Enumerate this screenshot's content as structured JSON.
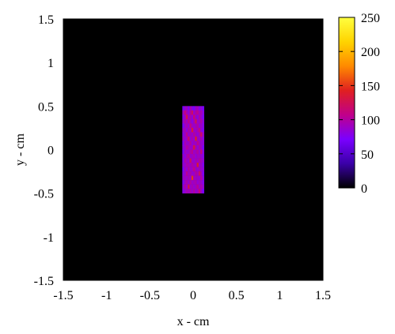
{
  "chart_data": {
    "type": "heatmap",
    "title": "",
    "xlabel": "x - cm",
    "ylabel": "y - cm",
    "xlim": [
      -1.5,
      1.5
    ],
    "ylim": [
      -1.5,
      1.5
    ],
    "x_ticks": [
      "-1.5",
      "-1",
      "-0.5",
      "0",
      "0.5",
      "1",
      "1.5"
    ],
    "y_ticks": [
      "-1.5",
      "-1",
      "-0.5",
      "0",
      "0.5",
      "1",
      "1.5"
    ],
    "x_tick_values": [
      -1.5,
      -1,
      -0.5,
      0,
      0.5,
      1,
      1.5
    ],
    "y_tick_values": [
      -1.5,
      -1,
      -0.5,
      0,
      0.5,
      1,
      1.5
    ],
    "background_value": 0,
    "colorbar": {
      "min": 0,
      "max": 250,
      "ticks": [
        "0",
        "50",
        "100",
        "150",
        "200",
        "250"
      ],
      "tick_values": [
        0,
        50,
        100,
        150,
        200,
        250
      ],
      "palette_stops": [
        "#000000",
        "#3b00a8",
        "#7a00ff",
        "#c0008a",
        "#e02020",
        "#ff8a00",
        "#ffd400",
        "#ffff40"
      ]
    },
    "hot_region": {
      "x_range": [
        -0.125,
        0.125
      ],
      "y_range": [
        -0.5,
        0.5
      ],
      "grid": [
        [
          70,
          85,
          90,
          75,
          95,
          80,
          72,
          88,
          92,
          78,
          84,
          70
        ],
        [
          88,
          110,
          95,
          82,
          100,
          120,
          86,
          98,
          105,
          90,
          94,
          80
        ],
        [
          76,
          92,
          130,
          88,
          96,
          84,
          115,
          90,
          82,
          100,
          88,
          74
        ],
        [
          84,
          98,
          90,
          105,
          92,
          80,
          94,
          125,
          86,
          92,
          96,
          82
        ],
        [
          72,
          88,
          96,
          84,
          110,
          92,
          86,
          94,
          100,
          84,
          90,
          78
        ],
        [
          86,
          94,
          82,
          98,
          88,
          135,
          92,
          86,
          96,
          110,
          84,
          76
        ],
        [
          78,
          90,
          104,
          86,
          94,
          88,
          100,
          92,
          84,
          96,
          120,
          88
        ],
        [
          90,
          84,
          92,
          118,
          86,
          96,
          84,
          140,
          90,
          86,
          94,
          80
        ],
        [
          74,
          96,
          88,
          90,
          102,
          84,
          92,
          88,
          106,
          92,
          86,
          84
        ],
        [
          82,
          88,
          100,
          94,
          86,
          92,
          130,
          96,
          84,
          98,
          90,
          72
        ],
        [
          70,
          92,
          86,
          88,
          96,
          104,
          88,
          92,
          100,
          86,
          112,
          80
        ],
        [
          86,
          80,
          94,
          102,
          88,
          90,
          96,
          84,
          92,
          90,
          88,
          78
        ],
        [
          76,
          98,
          90,
          86,
          124,
          88,
          84,
          96,
          88,
          100,
          92,
          84
        ],
        [
          84,
          86,
          96,
          92,
          90,
          98,
          92,
          88,
          140,
          86,
          90,
          76
        ],
        [
          72,
          94,
          84,
          100,
          86,
          92,
          110,
          90,
          86,
          94,
          88,
          82
        ],
        [
          80,
          88,
          104,
          90,
          96,
          86,
          88,
          100,
          92,
          120,
          96,
          74
        ],
        [
          86,
          92,
          88,
          96,
          84,
          150,
          94,
          88,
          90,
          86,
          102,
          80
        ],
        [
          74,
          90,
          96,
          86,
          100,
          88,
          92,
          96,
          84,
          92,
          88,
          78
        ],
        [
          82,
          100,
          86,
          128,
          88,
          94,
          86,
          92,
          104,
          88,
          96,
          84
        ],
        [
          78,
          86,
          94,
          90,
          96,
          88,
          100,
          86,
          92,
          110,
          90,
          72
        ]
      ]
    }
  }
}
